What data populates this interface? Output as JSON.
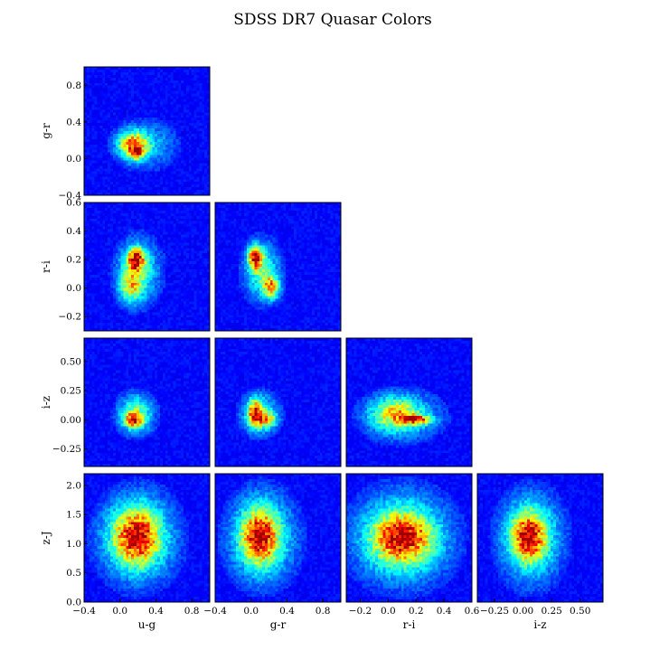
{
  "figure": {
    "title": "SDSS DR7 Quasar Colors"
  },
  "chart_data": {
    "type": "heatmap",
    "title": "SDSS DR7 Quasar Colors",
    "grid": false,
    "colormap": "jet",
    "variables": [
      {
        "key": "u-g",
        "label": "u-g",
        "range": [
          -0.4,
          1.0
        ],
        "ticks": [
          -0.4,
          0.0,
          0.4,
          0.8
        ],
        "tick_labels": [
          "−0.4",
          "0.0",
          "0.4",
          "0.8"
        ]
      },
      {
        "key": "g-r",
        "label": "g-r",
        "range": [
          -0.4,
          1.0
        ],
        "ticks": [
          -0.4,
          0.0,
          0.4,
          0.8
        ],
        "tick_labels": [
          "−0.4",
          "0.0",
          "0.4",
          "0.8"
        ]
      },
      {
        "key": "r-i",
        "label": "r-i",
        "range": [
          -0.3,
          0.6
        ],
        "ticks": [
          -0.2,
          0.0,
          0.2,
          0.4,
          0.6
        ],
        "tick_labels": [
          "−0.2",
          "0.0",
          "0.2",
          "0.4",
          "0.6"
        ]
      },
      {
        "key": "i-z",
        "label": "i-z",
        "range": [
          -0.4,
          0.7
        ],
        "ticks": [
          -0.25,
          0.0,
          0.25,
          0.5
        ],
        "tick_labels": [
          "−0.25",
          "0.00",
          "0.25",
          "0.50"
        ]
      },
      {
        "key": "z-J",
        "label": "z-J",
        "range": [
          0.0,
          2.2
        ],
        "ticks": [
          0.0,
          0.5,
          1.0,
          1.5,
          2.0
        ],
        "tick_labels": [
          "0.0",
          "0.5",
          "1.0",
          "1.5",
          "2.0"
        ]
      }
    ],
    "panels": [
      {
        "x": "u-g",
        "y": "g-r",
        "clusters": [
          {
            "cx": 0.15,
            "cy": 0.15,
            "sx": 0.1,
            "sy": 0.09,
            "w": 0.7
          },
          {
            "cx": 0.18,
            "cy": 0.06,
            "sx": 0.05,
            "sy": 0.04,
            "w": 0.6
          },
          {
            "cx": 0.3,
            "cy": 0.15,
            "sx": 0.2,
            "sy": 0.15,
            "w": 0.15
          }
        ]
      },
      {
        "x": "u-g",
        "y": "r-i",
        "clusters": [
          {
            "cx": 0.18,
            "cy": 0.2,
            "sx": 0.06,
            "sy": 0.05,
            "w": 0.9
          },
          {
            "cx": 0.12,
            "cy": 0.02,
            "sx": 0.08,
            "sy": 0.07,
            "w": 0.45
          },
          {
            "cx": 0.2,
            "cy": 0.12,
            "sx": 0.14,
            "sy": 0.13,
            "w": 0.3
          }
        ]
      },
      {
        "x": "g-r",
        "y": "r-i",
        "clusters": [
          {
            "cx": 0.05,
            "cy": 0.21,
            "sx": 0.05,
            "sy": 0.05,
            "w": 1.0
          },
          {
            "cx": 0.22,
            "cy": 0.01,
            "sx": 0.06,
            "sy": 0.05,
            "w": 0.65
          },
          {
            "cx": 0.12,
            "cy": 0.12,
            "sx": 0.12,
            "sy": 0.12,
            "w": 0.3
          }
        ]
      },
      {
        "x": "u-g",
        "y": "i-z",
        "clusters": [
          {
            "cx": 0.15,
            "cy": 0.0,
            "sx": 0.06,
            "sy": 0.04,
            "w": 0.9
          },
          {
            "cx": 0.18,
            "cy": 0.05,
            "sx": 0.12,
            "sy": 0.1,
            "w": 0.35
          }
        ]
      },
      {
        "x": "g-r",
        "y": "i-z",
        "clusters": [
          {
            "cx": 0.05,
            "cy": 0.05,
            "sx": 0.05,
            "sy": 0.07,
            "w": 0.8
          },
          {
            "cx": 0.18,
            "cy": 0.0,
            "sx": 0.06,
            "sy": 0.04,
            "w": 0.5
          },
          {
            "cx": 0.1,
            "cy": 0.05,
            "sx": 0.12,
            "sy": 0.1,
            "w": 0.3
          }
        ]
      },
      {
        "x": "r-i",
        "y": "i-z",
        "clusters": [
          {
            "cx": 0.2,
            "cy": 0.0,
            "sx": 0.07,
            "sy": 0.025,
            "w": 0.9
          },
          {
            "cx": 0.05,
            "cy": 0.05,
            "sx": 0.1,
            "sy": 0.08,
            "w": 0.5
          },
          {
            "cx": 0.1,
            "cy": 0.03,
            "sx": 0.16,
            "sy": 0.12,
            "w": 0.25
          }
        ]
      },
      {
        "x": "u-g",
        "y": "z-J",
        "clusters": [
          {
            "cx": 0.18,
            "cy": 1.12,
            "sx": 0.15,
            "sy": 0.28,
            "w": 0.8
          },
          {
            "cx": 0.2,
            "cy": 1.1,
            "sx": 0.25,
            "sy": 0.45,
            "w": 0.3
          }
        ]
      },
      {
        "x": "g-r",
        "y": "z-J",
        "clusters": [
          {
            "cx": 0.1,
            "cy": 1.12,
            "sx": 0.12,
            "sy": 0.28,
            "w": 0.8
          },
          {
            "cx": 0.12,
            "cy": 1.1,
            "sx": 0.22,
            "sy": 0.45,
            "w": 0.3
          }
        ]
      },
      {
        "x": "r-i",
        "y": "z-J",
        "clusters": [
          {
            "cx": 0.1,
            "cy": 1.1,
            "sx": 0.12,
            "sy": 0.25,
            "w": 0.75
          },
          {
            "cx": 0.1,
            "cy": 1.1,
            "sx": 0.2,
            "sy": 0.45,
            "w": 0.35
          }
        ]
      },
      {
        "x": "i-z",
        "y": "z-J",
        "clusters": [
          {
            "cx": 0.05,
            "cy": 1.12,
            "sx": 0.09,
            "sy": 0.25,
            "w": 0.8
          },
          {
            "cx": 0.07,
            "cy": 1.1,
            "sx": 0.16,
            "sy": 0.45,
            "w": 0.3
          }
        ]
      }
    ]
  }
}
